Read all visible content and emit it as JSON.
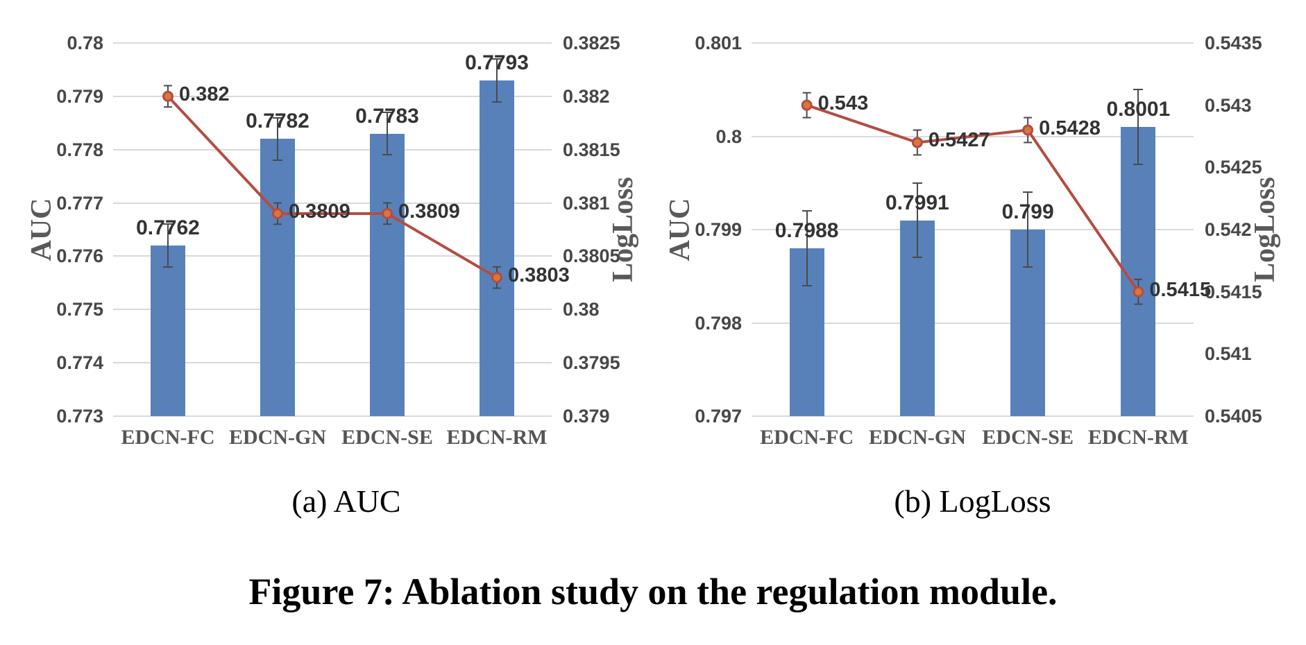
{
  "figure": {
    "caption": "Figure 7: Ablation study on the regulation module."
  },
  "colors": {
    "bar": "#5881BA",
    "line": "#B54C42",
    "marker_fill": "#D4783C",
    "grid": "#D9D9D9",
    "error": "#4A4A4A",
    "tick_text": "#474747",
    "data_label_text": "#333333",
    "axis_title_text": "#595959",
    "category_text": "#555555"
  },
  "chart_data": [
    {
      "type": "bar",
      "panel": "a",
      "subcaption": "(a) AUC",
      "categories": [
        "EDCN-FC",
        "EDCN-GN",
        "EDCN-SE",
        "EDCN-RM"
      ],
      "grid": "on",
      "left_axis": {
        "title": "AUC",
        "min": 0.773,
        "max": 0.78,
        "ticks": [
          "0.78",
          "0.779",
          "0.778",
          "0.777",
          "0.776",
          "0.775",
          "0.774",
          "0.773"
        ]
      },
      "right_axis": {
        "title": "LogLoss",
        "min": 0.379,
        "max": 0.3825,
        "ticks": [
          "0.3825",
          "0.382",
          "0.3815",
          "0.381",
          "0.3805",
          "0.38",
          "0.3795",
          "0.379"
        ]
      },
      "series": [
        {
          "name": "AUC",
          "type": "bar",
          "axis": "left",
          "values": [
            0.7762,
            0.7782,
            0.7783,
            0.7793
          ],
          "labels": [
            "0.7762",
            "0.7782",
            "0.7783",
            "0.7793"
          ],
          "error": 0.0004
        },
        {
          "name": "LogLoss",
          "type": "line",
          "axis": "right",
          "values": [
            0.382,
            0.3809,
            0.3809,
            0.3803
          ],
          "labels": [
            "0.382",
            "0.3809",
            "0.3809",
            "0.3803"
          ],
          "error": 0.0001
        }
      ]
    },
    {
      "type": "bar",
      "panel": "b",
      "subcaption": "(b) LogLoss",
      "categories": [
        "EDCN-FC",
        "EDCN-GN",
        "EDCN-SE",
        "EDCN-RM"
      ],
      "grid": "on",
      "left_axis": {
        "title": "AUC",
        "min": 0.797,
        "max": 0.801,
        "ticks": [
          "0.801",
          "0.8",
          "0.799",
          "0.798",
          "0.797"
        ]
      },
      "right_axis": {
        "title": "LogLoss",
        "min": 0.5405,
        "max": 0.5435,
        "ticks": [
          "0.5435",
          "0.543",
          "0.5425",
          "0.542",
          "0.5415",
          "0.541",
          "0.5405"
        ]
      },
      "series": [
        {
          "name": "AUC",
          "type": "bar",
          "axis": "left",
          "values": [
            0.7988,
            0.7991,
            0.799,
            0.8001
          ],
          "labels": [
            "0.7988",
            "0.7991",
            "0.799",
            "0.8001"
          ],
          "error": 0.0004
        },
        {
          "name": "LogLoss",
          "type": "line",
          "axis": "right",
          "values": [
            0.543,
            0.5427,
            0.5428,
            0.5415
          ],
          "labels": [
            "0.543",
            "0.5427",
            "0.5428",
            "0.5415"
          ],
          "error": 0.0001
        }
      ]
    }
  ]
}
